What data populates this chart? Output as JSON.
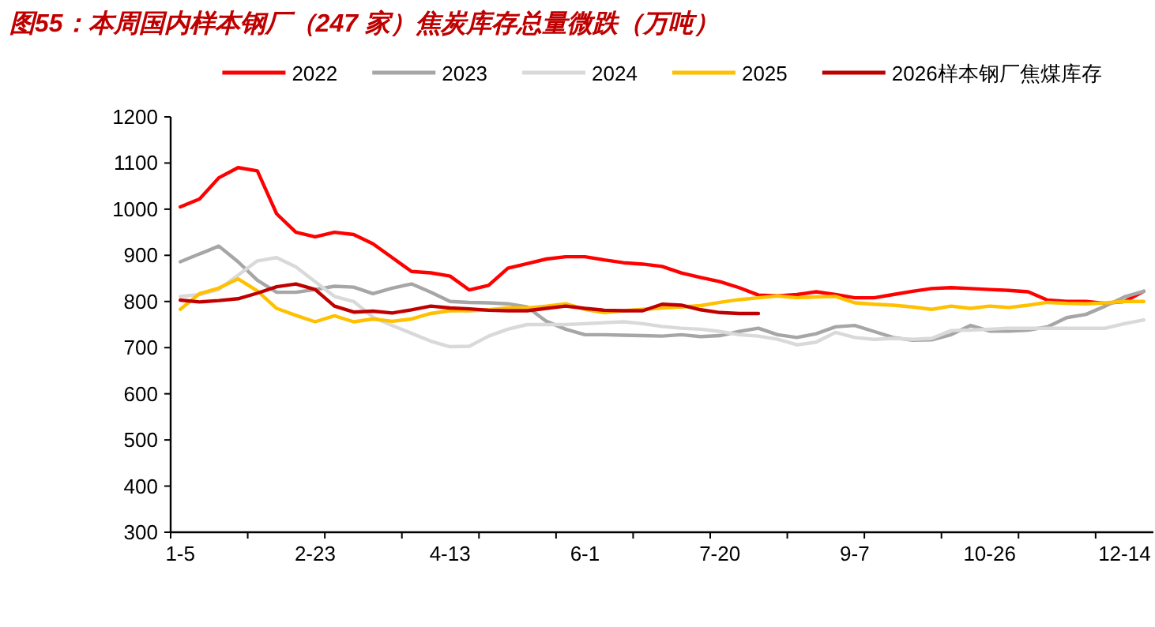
{
  "chart_data": {
    "type": "line",
    "title": "图55：本周国内样本钢厂（247 家）焦炭库存总量微跌（万吨）",
    "categories": [
      "1-5",
      null,
      null,
      null,
      null,
      null,
      null,
      "2-23",
      null,
      null,
      null,
      null,
      null,
      null,
      "4-13",
      null,
      null,
      null,
      null,
      null,
      null,
      "6-1",
      null,
      null,
      null,
      null,
      null,
      null,
      "7-20",
      null,
      null,
      null,
      null,
      null,
      null,
      "9-7",
      null,
      null,
      null,
      null,
      null,
      null,
      "10-26",
      null,
      null,
      null,
      null,
      null,
      null,
      "12-14",
      null
    ],
    "series": [
      {
        "name": "2022",
        "color": "#ff0000",
        "values": [
          1005,
          1022,
          1068,
          1090,
          1083,
          990,
          950,
          940,
          950,
          945,
          925,
          895,
          865,
          862,
          855,
          825,
          835,
          872,
          882,
          892,
          897,
          897,
          890,
          884,
          881,
          876,
          862,
          852,
          843,
          830,
          814,
          812,
          815,
          821,
          815,
          808,
          808,
          815,
          822,
          828,
          830,
          828,
          826,
          824,
          821,
          803,
          800,
          800,
          796,
          800,
          822
        ]
      },
      {
        "name": "2023",
        "color": "#a6a6a6",
        "values": [
          886,
          903,
          920,
          886,
          846,
          820,
          820,
          826,
          833,
          831,
          817,
          829,
          838,
          820,
          800,
          798,
          797,
          795,
          788,
          757,
          740,
          728,
          728,
          727,
          726,
          725,
          728,
          724,
          726,
          735,
          742,
          728,
          722,
          730,
          745,
          748,
          735,
          722,
          716,
          717,
          728,
          748,
          736,
          736,
          738,
          745,
          765,
          772,
          790,
          810,
          822
        ]
      },
      {
        "name": "2024",
        "color": "#d9d9d9",
        "values": [
          811,
          815,
          826,
          857,
          888,
          895,
          875,
          843,
          811,
          800,
          766,
          748,
          731,
          714,
          702,
          703,
          725,
          740,
          750,
          750,
          750,
          752,
          754,
          756,
          752,
          746,
          742,
          740,
          735,
          728,
          725,
          718,
          706,
          712,
          733,
          722,
          718,
          720,
          718,
          720,
          737,
          738,
          740,
          742,
          742,
          742,
          742,
          742,
          742,
          752,
          760
        ]
      },
      {
        "name": "2025",
        "color": "#ffc000",
        "values": [
          783,
          817,
          829,
          849,
          823,
          785,
          770,
          756,
          769,
          756,
          762,
          757,
          762,
          774,
          780,
          780,
          782,
          786,
          786,
          790,
          795,
          783,
          776,
          780,
          783,
          786,
          788,
          791,
          798,
          804,
          808,
          812,
          808,
          810,
          811,
          797,
          794,
          792,
          788,
          783,
          790,
          785,
          790,
          787,
          792,
          798,
          796,
          795,
          797,
          800,
          800
        ]
      },
      {
        "name": "2026样本钢厂焦煤库存",
        "color": "#c00000",
        "values": [
          803,
          799,
          802,
          806,
          818,
          832,
          838,
          826,
          790,
          777,
          779,
          775,
          782,
          790,
          786,
          784,
          781,
          780,
          780,
          785,
          790,
          785,
          781,
          780,
          780,
          794,
          792,
          782,
          776,
          774,
          774,
          null,
          null,
          null,
          null,
          null,
          null,
          null,
          null,
          null,
          null,
          null,
          null,
          null,
          null,
          null,
          null,
          null,
          null,
          null,
          null
        ]
      }
    ],
    "ylim": [
      300,
      1200
    ],
    "yticks": [
      300,
      400,
      500,
      600,
      700,
      800,
      900,
      1000,
      1100,
      1200
    ],
    "grid": false,
    "legend": "top"
  }
}
